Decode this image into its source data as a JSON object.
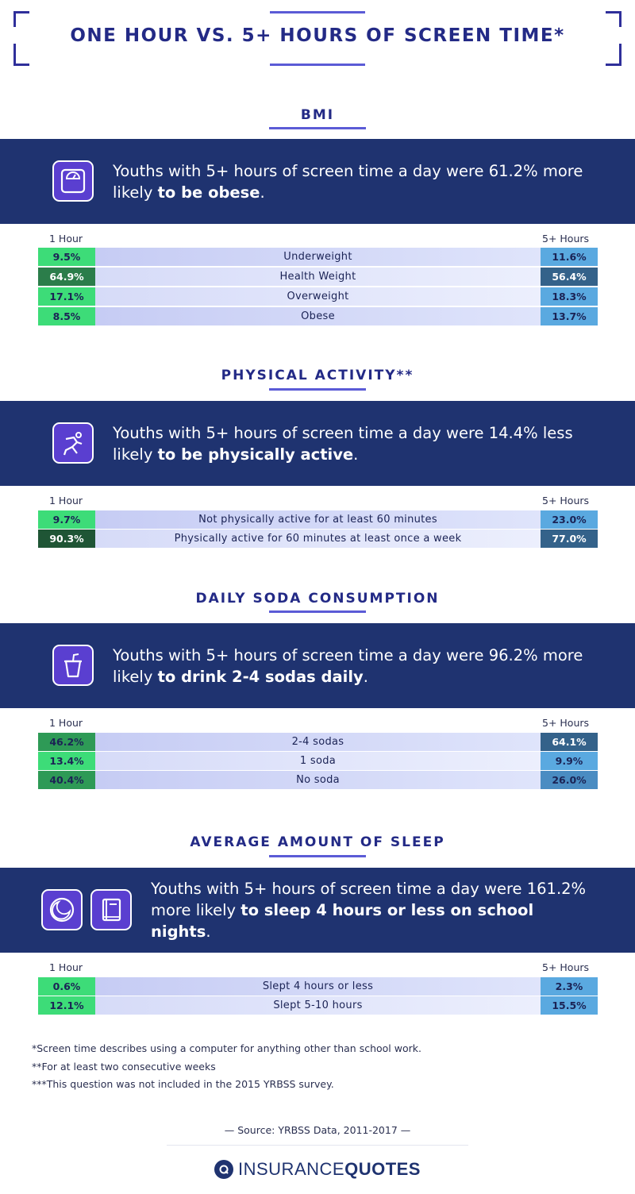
{
  "title": "ONE HOUR VS. 5+ HOURS OF SCREEN TIME*",
  "column_labels": {
    "left": "1 Hour",
    "right": "5+ Hours"
  },
  "sections": [
    {
      "title": "BMI",
      "icon": "scale-icon",
      "statement_plain": "Youths with 5+ hours of screen time a day were 61.2% more likely ",
      "statement_bold": "to be obese",
      "statement_end": ".",
      "rows": [
        {
          "label": "Underweight",
          "left": "9.5%",
          "right": "11.6%",
          "left_color": "#3ddc78",
          "right_color": "#5aa9e0"
        },
        {
          "label": "Health Weight",
          "left": "64.9%",
          "right": "56.4%",
          "left_color": "#2b7d4a",
          "right_color": "#34628a"
        },
        {
          "label": "Overweight",
          "left": "17.1%",
          "right": "18.3%",
          "left_color": "#3ddc78",
          "right_color": "#5aa9e0"
        },
        {
          "label": "Obese",
          "left": "8.5%",
          "right": "13.7%",
          "left_color": "#3ddc78",
          "right_color": "#5aa9e0"
        }
      ]
    },
    {
      "title": "PHYSICAL ACTIVITY**",
      "icon": "running-person-icon",
      "statement_plain": "Youths with 5+ hours of screen time a day were 14.4% less likely ",
      "statement_bold": "to be physically active",
      "statement_end": ".",
      "rows": [
        {
          "label": "Not physically active for at least 60 minutes",
          "left": "9.7%",
          "right": "23.0%",
          "left_color": "#3ddc78",
          "right_color": "#5aa9e0"
        },
        {
          "label": "Physically active for 60 minutes at least once a week",
          "left": "90.3%",
          "right": "77.0%",
          "left_color": "#1f5535",
          "right_color": "#34628a"
        }
      ]
    },
    {
      "title": "DAILY SODA CONSUMPTION",
      "icon": "soda-cup-icon",
      "statement_plain": "Youths with 5+ hours of screen time a day were 96.2% more likely ",
      "statement_bold": "to drink 2-4 sodas daily",
      "statement_end": ".",
      "rows": [
        {
          "label": "2-4 sodas",
          "left": "46.2%",
          "right": "64.1%",
          "left_color": "#2e9a56",
          "right_color": "#34628a"
        },
        {
          "label": "1 soda",
          "left": "13.4%",
          "right": "9.9%",
          "left_color": "#3ddc78",
          "right_color": "#5aa9e0"
        },
        {
          "label": "No soda",
          "left": "40.4%",
          "right": "26.0%",
          "left_color": "#2e9a56",
          "right_color": "#4a8cc2"
        }
      ]
    },
    {
      "title": "AVERAGE AMOUNT OF SLEEP",
      "icon": "clock-icon",
      "icon2": "book-icon",
      "statement_plain": "Youths with 5+ hours of screen time a day were 161.2% more likely ",
      "statement_bold": "to sleep 4 hours or less on school nights",
      "statement_end": ".",
      "rows": [
        {
          "label": "Slept 4 hours or less",
          "left": "0.6%",
          "right": "2.3%",
          "left_color": "#3ddc78",
          "right_color": "#5aa9e0"
        },
        {
          "label": "Slept 5-10 hours",
          "left": "12.1%",
          "right": "15.5%",
          "left_color": "#3ddc78",
          "right_color": "#5aa9e0"
        }
      ]
    }
  ],
  "footnotes": [
    "*Screen time describes using a computer for anything other than school work.",
    "**For at least two consecutive weeks",
    "***This question was not included in the 2015 YRBSS survey."
  ],
  "source": "—  Source: YRBSS Data, 2011-2017 —",
  "logo": {
    "part1": "INSURANCE",
    "part2": "QUOTES"
  }
}
